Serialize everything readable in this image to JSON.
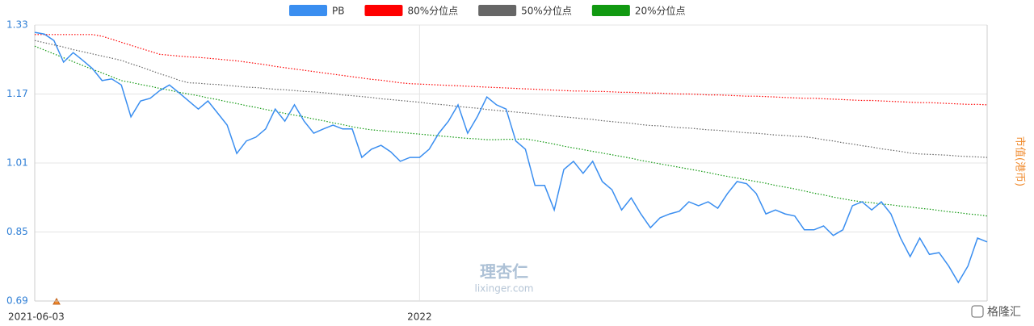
{
  "chart_data": {
    "type": "line",
    "categories": [
      "2021-06-03",
      null,
      null,
      null,
      null,
      null,
      null,
      null,
      null,
      null,
      null,
      null,
      null,
      null,
      null,
      null,
      null,
      null,
      null,
      null,
      null,
      null,
      null,
      null,
      null,
      null,
      null,
      null,
      null,
      null,
      null,
      null,
      null,
      null,
      null,
      null,
      null,
      null,
      null,
      null,
      "2022",
      null,
      null,
      null,
      null,
      null,
      null,
      null,
      null,
      null,
      null,
      null,
      null,
      null,
      null,
      null,
      null,
      null,
      null,
      null,
      null,
      null,
      null,
      null,
      null,
      null,
      null,
      null,
      null,
      null,
      null,
      null,
      null,
      null,
      null,
      null,
      null,
      null,
      null,
      null,
      null,
      null,
      null,
      null,
      null,
      null,
      null,
      null,
      null,
      null,
      null,
      null,
      null,
      null,
      null,
      null,
      null,
      null,
      null,
      null
    ],
    "series": [
      {
        "name": "PB",
        "color": "#3a8ef0",
        "line_style": "solid",
        "values": [
          1.313,
          1.309,
          1.294,
          1.244,
          1.266,
          1.248,
          1.229,
          1.201,
          1.205,
          1.191,
          1.117,
          1.154,
          1.16,
          1.178,
          1.191,
          1.173,
          1.154,
          1.135,
          1.154,
          1.126,
          1.098,
          1.032,
          1.061,
          1.07,
          1.089,
          1.135,
          1.107,
          1.145,
          1.107,
          1.079,
          1.089,
          1.098,
          1.089,
          1.089,
          1.023,
          1.042,
          1.051,
          1.036,
          1.014,
          1.023,
          1.023,
          1.042,
          1.079,
          1.107,
          1.145,
          1.079,
          1.117,
          1.163,
          1.145,
          1.135,
          1.061,
          1.042,
          0.958,
          0.958,
          0.901,
          0.995,
          1.014,
          0.986,
          1.014,
          0.967,
          0.948,
          0.901,
          0.929,
          0.892,
          0.86,
          0.883,
          0.892,
          0.898,
          0.92,
          0.911,
          0.92,
          0.905,
          0.939,
          0.967,
          0.962,
          0.939,
          0.892,
          0.901,
          0.892,
          0.887,
          0.855,
          0.855,
          0.864,
          0.842,
          0.855,
          0.911,
          0.92,
          0.901,
          0.92,
          0.892,
          0.836,
          0.793,
          0.836,
          0.798,
          0.802,
          0.771,
          0.733,
          0.771,
          0.836,
          0.827
        ]
      },
      {
        "name": "80%分位点",
        "color": "#ff0000",
        "line_style": "dotted",
        "values": [
          1.308,
          1.308,
          1.308,
          1.308,
          1.308,
          1.308,
          1.308,
          1.304,
          1.297,
          1.29,
          1.283,
          1.276,
          1.269,
          1.262,
          1.26,
          1.258,
          1.256,
          1.255,
          1.253,
          1.251,
          1.249,
          1.247,
          1.244,
          1.241,
          1.238,
          1.234,
          1.231,
          1.228,
          1.225,
          1.222,
          1.219,
          1.216,
          1.213,
          1.21,
          1.207,
          1.204,
          1.202,
          1.199,
          1.196,
          1.194,
          1.193,
          1.192,
          1.191,
          1.19,
          1.189,
          1.188,
          1.187,
          1.186,
          1.185,
          1.184,
          1.183,
          1.182,
          1.181,
          1.18,
          1.179,
          1.178,
          1.177,
          1.177,
          1.176,
          1.176,
          1.175,
          1.174,
          1.174,
          1.173,
          1.172,
          1.172,
          1.171,
          1.17,
          1.17,
          1.169,
          1.168,
          1.168,
          1.167,
          1.166,
          1.165,
          1.165,
          1.164,
          1.163,
          1.162,
          1.161,
          1.16,
          1.16,
          1.159,
          1.158,
          1.157,
          1.156,
          1.155,
          1.155,
          1.154,
          1.153,
          1.152,
          1.151,
          1.15,
          1.15,
          1.149,
          1.148,
          1.147,
          1.146,
          1.146,
          1.145
        ]
      },
      {
        "name": "50%分位点",
        "color": "#666666",
        "line_style": "dotted",
        "values": [
          1.294,
          1.289,
          1.284,
          1.279,
          1.273,
          1.268,
          1.263,
          1.258,
          1.253,
          1.248,
          1.24,
          1.233,
          1.225,
          1.217,
          1.21,
          1.202,
          1.196,
          1.195,
          1.193,
          1.192,
          1.19,
          1.188,
          1.186,
          1.185,
          1.183,
          1.181,
          1.18,
          1.178,
          1.176,
          1.175,
          1.173,
          1.171,
          1.168,
          1.166,
          1.164,
          1.162,
          1.159,
          1.157,
          1.155,
          1.153,
          1.151,
          1.148,
          1.146,
          1.144,
          1.141,
          1.139,
          1.137,
          1.134,
          1.132,
          1.13,
          1.128,
          1.126,
          1.124,
          1.121,
          1.119,
          1.117,
          1.115,
          1.113,
          1.111,
          1.108,
          1.106,
          1.104,
          1.102,
          1.099,
          1.097,
          1.096,
          1.094,
          1.092,
          1.091,
          1.089,
          1.087,
          1.086,
          1.084,
          1.082,
          1.08,
          1.079,
          1.077,
          1.075,
          1.074,
          1.072,
          1.071,
          1.068,
          1.064,
          1.061,
          1.057,
          1.054,
          1.05,
          1.047,
          1.043,
          1.04,
          1.037,
          1.033,
          1.031,
          1.03,
          1.029,
          1.028,
          1.026,
          1.025,
          1.024,
          1.023
        ]
      },
      {
        "name": "20%分位点",
        "color": "#119911",
        "line_style": "dotted",
        "values": [
          1.281,
          1.272,
          1.263,
          1.254,
          1.245,
          1.236,
          1.227,
          1.219,
          1.21,
          1.201,
          1.197,
          1.192,
          1.188,
          1.183,
          1.179,
          1.174,
          1.17,
          1.166,
          1.161,
          1.157,
          1.152,
          1.148,
          1.143,
          1.139,
          1.134,
          1.13,
          1.125,
          1.121,
          1.117,
          1.112,
          1.108,
          1.103,
          1.099,
          1.094,
          1.09,
          1.087,
          1.085,
          1.083,
          1.081,
          1.079,
          1.077,
          1.075,
          1.073,
          1.071,
          1.069,
          1.067,
          1.066,
          1.064,
          1.064,
          1.065,
          1.065,
          1.066,
          1.062,
          1.058,
          1.054,
          1.049,
          1.045,
          1.041,
          1.037,
          1.033,
          1.029,
          1.025,
          1.021,
          1.016,
          1.012,
          1.008,
          1.004,
          1.0,
          0.996,
          0.992,
          0.988,
          0.983,
          0.979,
          0.975,
          0.971,
          0.967,
          0.963,
          0.958,
          0.954,
          0.95,
          0.945,
          0.94,
          0.936,
          0.931,
          0.927,
          0.923,
          0.92,
          0.918,
          0.915,
          0.913,
          0.91,
          0.908,
          0.905,
          0.903,
          0.9,
          0.897,
          0.895,
          0.892,
          0.89,
          0.887
        ]
      }
    ],
    "ylim": [
      0.69,
      1.33
    ],
    "yticks": [
      0.69,
      0.85,
      1.01,
      1.17,
      1.33
    ],
    "grid": true,
    "y2_label": "市值(港币)",
    "watermark": {
      "name": "理杏仁",
      "site": "lixinger.com",
      "source": "格隆汇"
    }
  }
}
